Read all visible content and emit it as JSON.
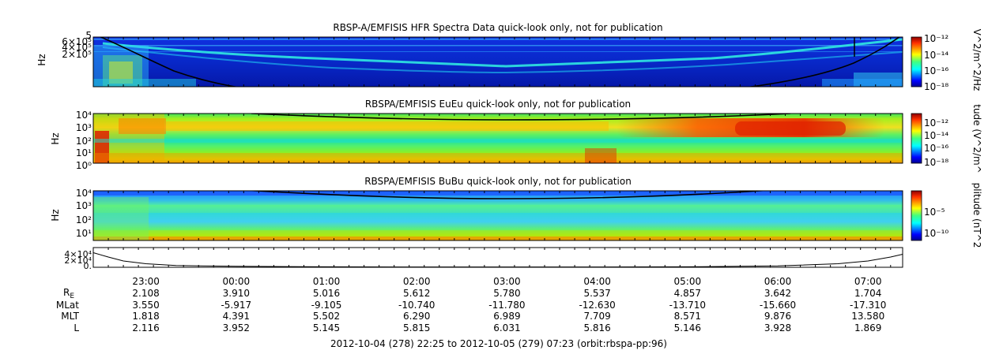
{
  "chart_data": [
    {
      "type": "heatmap",
      "title": "RBSP-A/EMFISIS  HFR Spectra Data quick-look only, not for publication",
      "ylabel": "Hz",
      "ytick_labels": [
        "5",
        "6×10⁵",
        "4×10⁵",
        "2×10⁵"
      ],
      "colorbar_label": "V^2/m^2/Hz",
      "colorbar_ticks": [
        "10⁻¹²",
        "10⁻¹⁴",
        "10⁻¹⁶",
        "10⁻¹⁸"
      ]
    },
    {
      "type": "heatmap",
      "title": "RBSPA/EMFISIS  EuEu quick-look only, not for publication",
      "ylabel": "Hz",
      "ytick_labels": [
        "10⁴",
        "10³",
        "10²",
        "10¹",
        "10⁰"
      ],
      "colorbar_label": "tude (V^2/m^",
      "colorbar_ticks": [
        "10⁻¹²",
        "10⁻¹⁴",
        "10⁻¹⁶",
        "10⁻¹⁸"
      ]
    },
    {
      "type": "heatmap",
      "title": "RBSPA/EMFISIS  BuBu quick-look only, not for publication",
      "ylabel": "Hz",
      "ytick_labels": [
        "10⁴",
        "10³",
        "10²",
        "10¹"
      ],
      "colorbar_label": "plitude (nT^2",
      "colorbar_ticks": [
        "10⁻⁵",
        "10⁻¹⁰"
      ]
    },
    {
      "type": "line",
      "ytick_labels": [
        "4×10⁴",
        "2×10⁴",
        "0."
      ],
      "x": [
        "22:25",
        "22:35",
        "22:45",
        "23:00",
        "23:20",
        "00:00",
        "01:00",
        "02:00",
        "03:00",
        "04:00",
        "05:00",
        "06:00",
        "06:40",
        "07:00",
        "07:15",
        "07:23"
      ],
      "values": [
        37000,
        26000,
        16000,
        9000,
        4500,
        2500,
        1200,
        800,
        700,
        800,
        1300,
        3500,
        9000,
        16000,
        26000,
        33000
      ]
    }
  ],
  "x_axis": {
    "tick_labels": [
      "23:00",
      "00:00",
      "01:00",
      "02:00",
      "03:00",
      "04:00",
      "05:00",
      "06:00",
      "07:00"
    ],
    "rows": [
      {
        "label": "R",
        "label_sub": "E",
        "values": [
          "2.108",
          "3.910",
          "5.016",
          "5.612",
          "5.780",
          "5.537",
          "4.857",
          "3.642",
          "1.704"
        ]
      },
      {
        "label": "MLat",
        "label_sub": "",
        "values": [
          "3.550",
          "-5.917",
          "-9.105",
          "-10.740",
          "-11.780",
          "-12.630",
          "-13.710",
          "-15.660",
          "-17.310"
        ]
      },
      {
        "label": "MLT",
        "label_sub": "",
        "values": [
          "1.818",
          "4.391",
          "5.502",
          "6.290",
          "6.989",
          "7.709",
          "8.571",
          "9.876",
          "13.580"
        ]
      },
      {
        "label": "L",
        "label_sub": "",
        "values": [
          "2.116",
          "3.952",
          "5.145",
          "5.815",
          "6.031",
          "5.816",
          "5.146",
          "3.928",
          "1.869"
        ]
      }
    ]
  },
  "footer": "2012-10-04 (278) 22:25 to 2012-10-05 (279) 07:23 (orbit:rbspa-pp:96)"
}
